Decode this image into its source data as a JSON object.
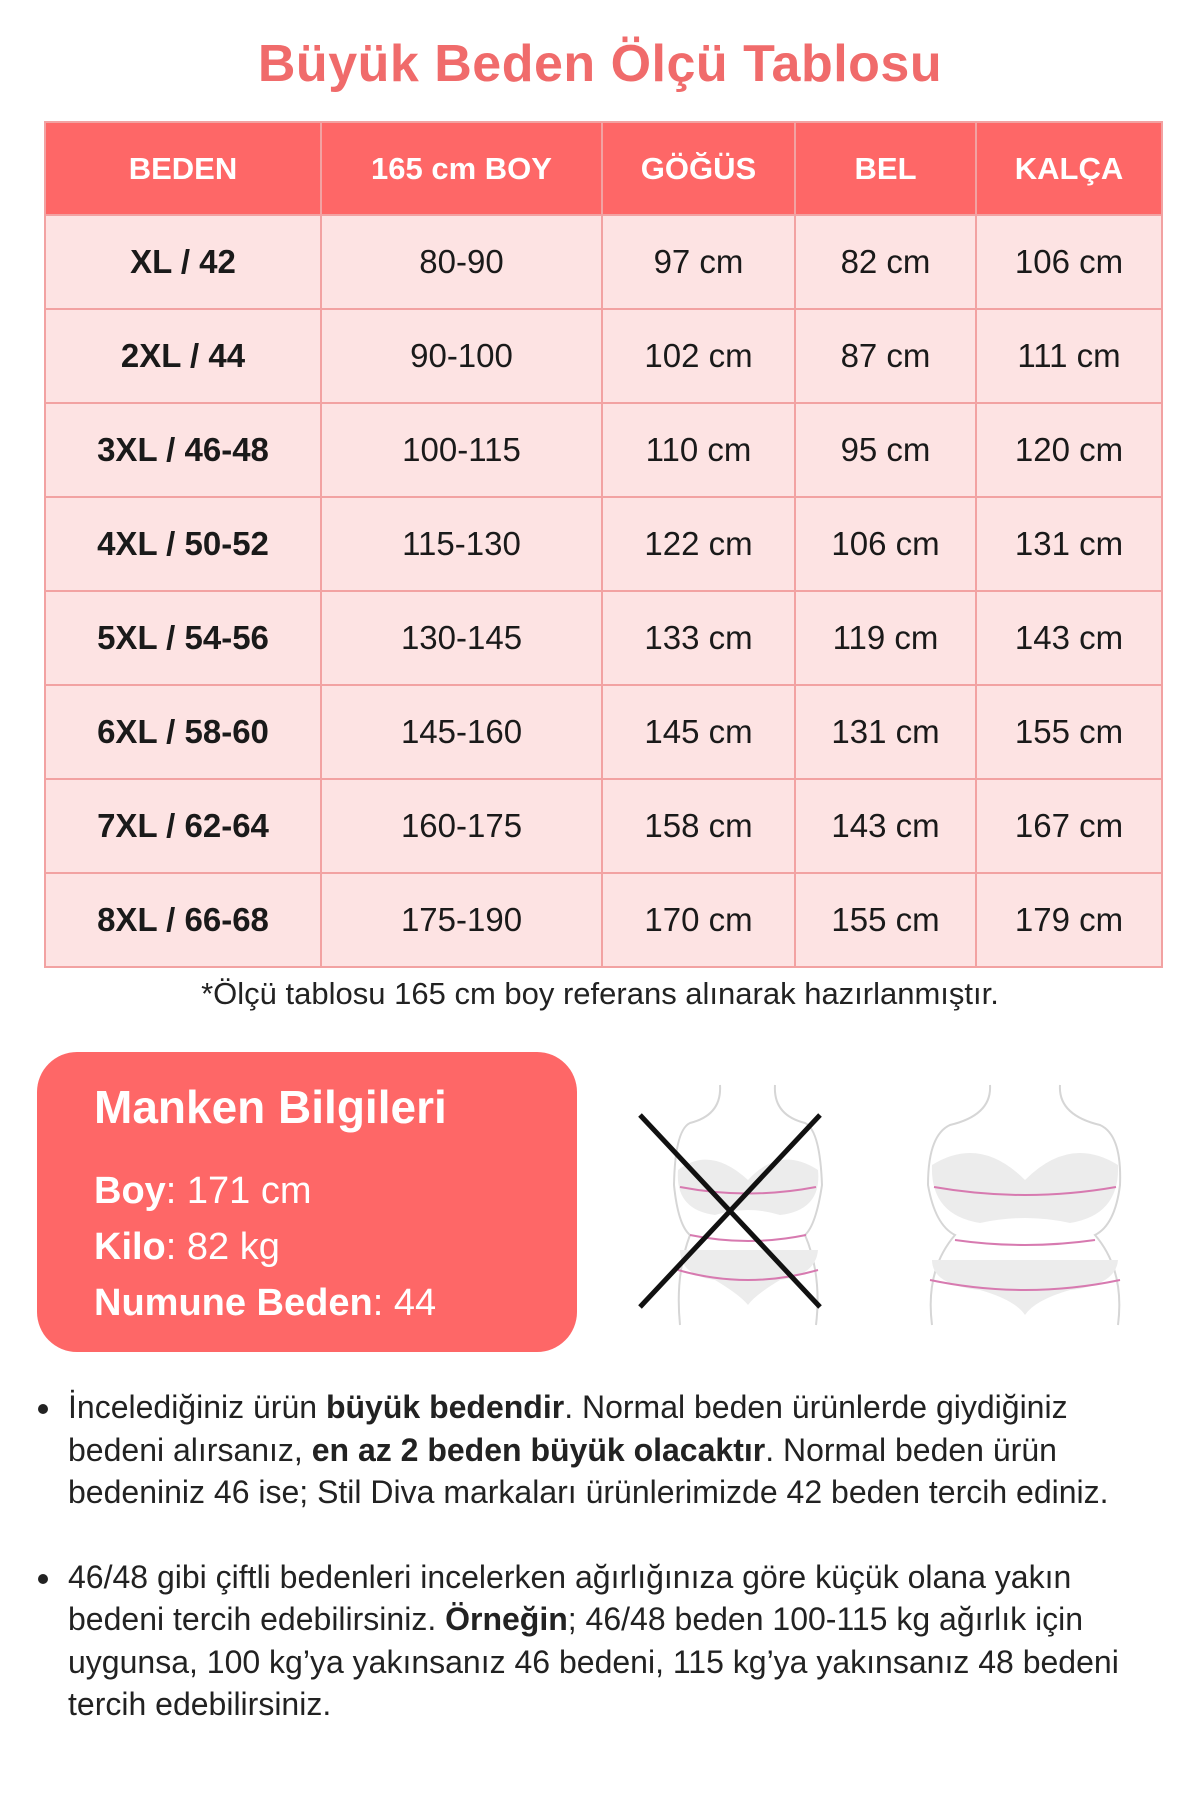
{
  "title": "Büyük Beden Ölçü Tablosu",
  "table": {
    "headers": [
      "BEDEN",
      "165 cm BOY",
      "GÖĞÜS",
      "BEL",
      "KALÇA"
    ],
    "rows": [
      [
        "XL / 42",
        "80-90",
        "97 cm",
        "82 cm",
        "106 cm"
      ],
      [
        "2XL / 44",
        "90-100",
        "102 cm",
        "87 cm",
        "111 cm"
      ],
      [
        "3XL / 46-48",
        "100-115",
        "110 cm",
        "95 cm",
        "120 cm"
      ],
      [
        "4XL / 50-52",
        "115-130",
        "122 cm",
        "106 cm",
        "131 cm"
      ],
      [
        "5XL / 54-56",
        "130-145",
        "133 cm",
        "119 cm",
        "143 cm"
      ],
      [
        "6XL / 58-60",
        "145-160",
        "145 cm",
        "131 cm",
        "155 cm"
      ],
      [
        "7XL / 62-64",
        "160-175",
        "158 cm",
        "143 cm",
        "167 cm"
      ],
      [
        "8XL / 66-68",
        "175-190",
        "170 cm",
        "155 cm",
        "179 cm"
      ]
    ]
  },
  "note": "*Ölçü tablosu 165 cm boy referans alınarak hazırlanmıştır.",
  "manken": {
    "title": "Manken Bilgileri",
    "boy_label": "Boy",
    "boy_value": ": 171 cm",
    "kilo_label": "Kilo",
    "kilo_value": ": 82 kg",
    "beden_label": "Numune Beden",
    "beden_value": ": 44"
  },
  "figures": {
    "wrong": "crossed-out-body-measurement-icon",
    "right": "body-measurement-icon"
  },
  "bullets": [
    {
      "p1": "İncelediğiniz ürün ",
      "b1": "büyük bedendir",
      "p2": ". Normal beden ürünlerde giydiğiniz bedeni alırsanız, ",
      "b2": "en az 2 beden büyük olacaktır",
      "p3": ". Normal beden ürün bedeniniz 46 ise; Stil Diva markaları ürünlerimizde 42 beden tercih ediniz."
    },
    {
      "p1": "46/48 gibi çiftli bedenleri incelerken ağırlığınıza göre küçük olana yakın bedeni tercih edebilirsiniz. ",
      "b1": "Örneğin",
      "p2": "; 46/48 beden 100-115 kg ağırlık için uygunsa, 100 kg’ya yakınsanız 46 bedeni, 115 kg’ya yakınsanız 48 bedeni tercih edebilirsiniz."
    }
  ],
  "colors": {
    "accent": "#fe6767",
    "title": "#f06b6b",
    "cell": "#fde3e3",
    "border": "#f2a2a2"
  }
}
